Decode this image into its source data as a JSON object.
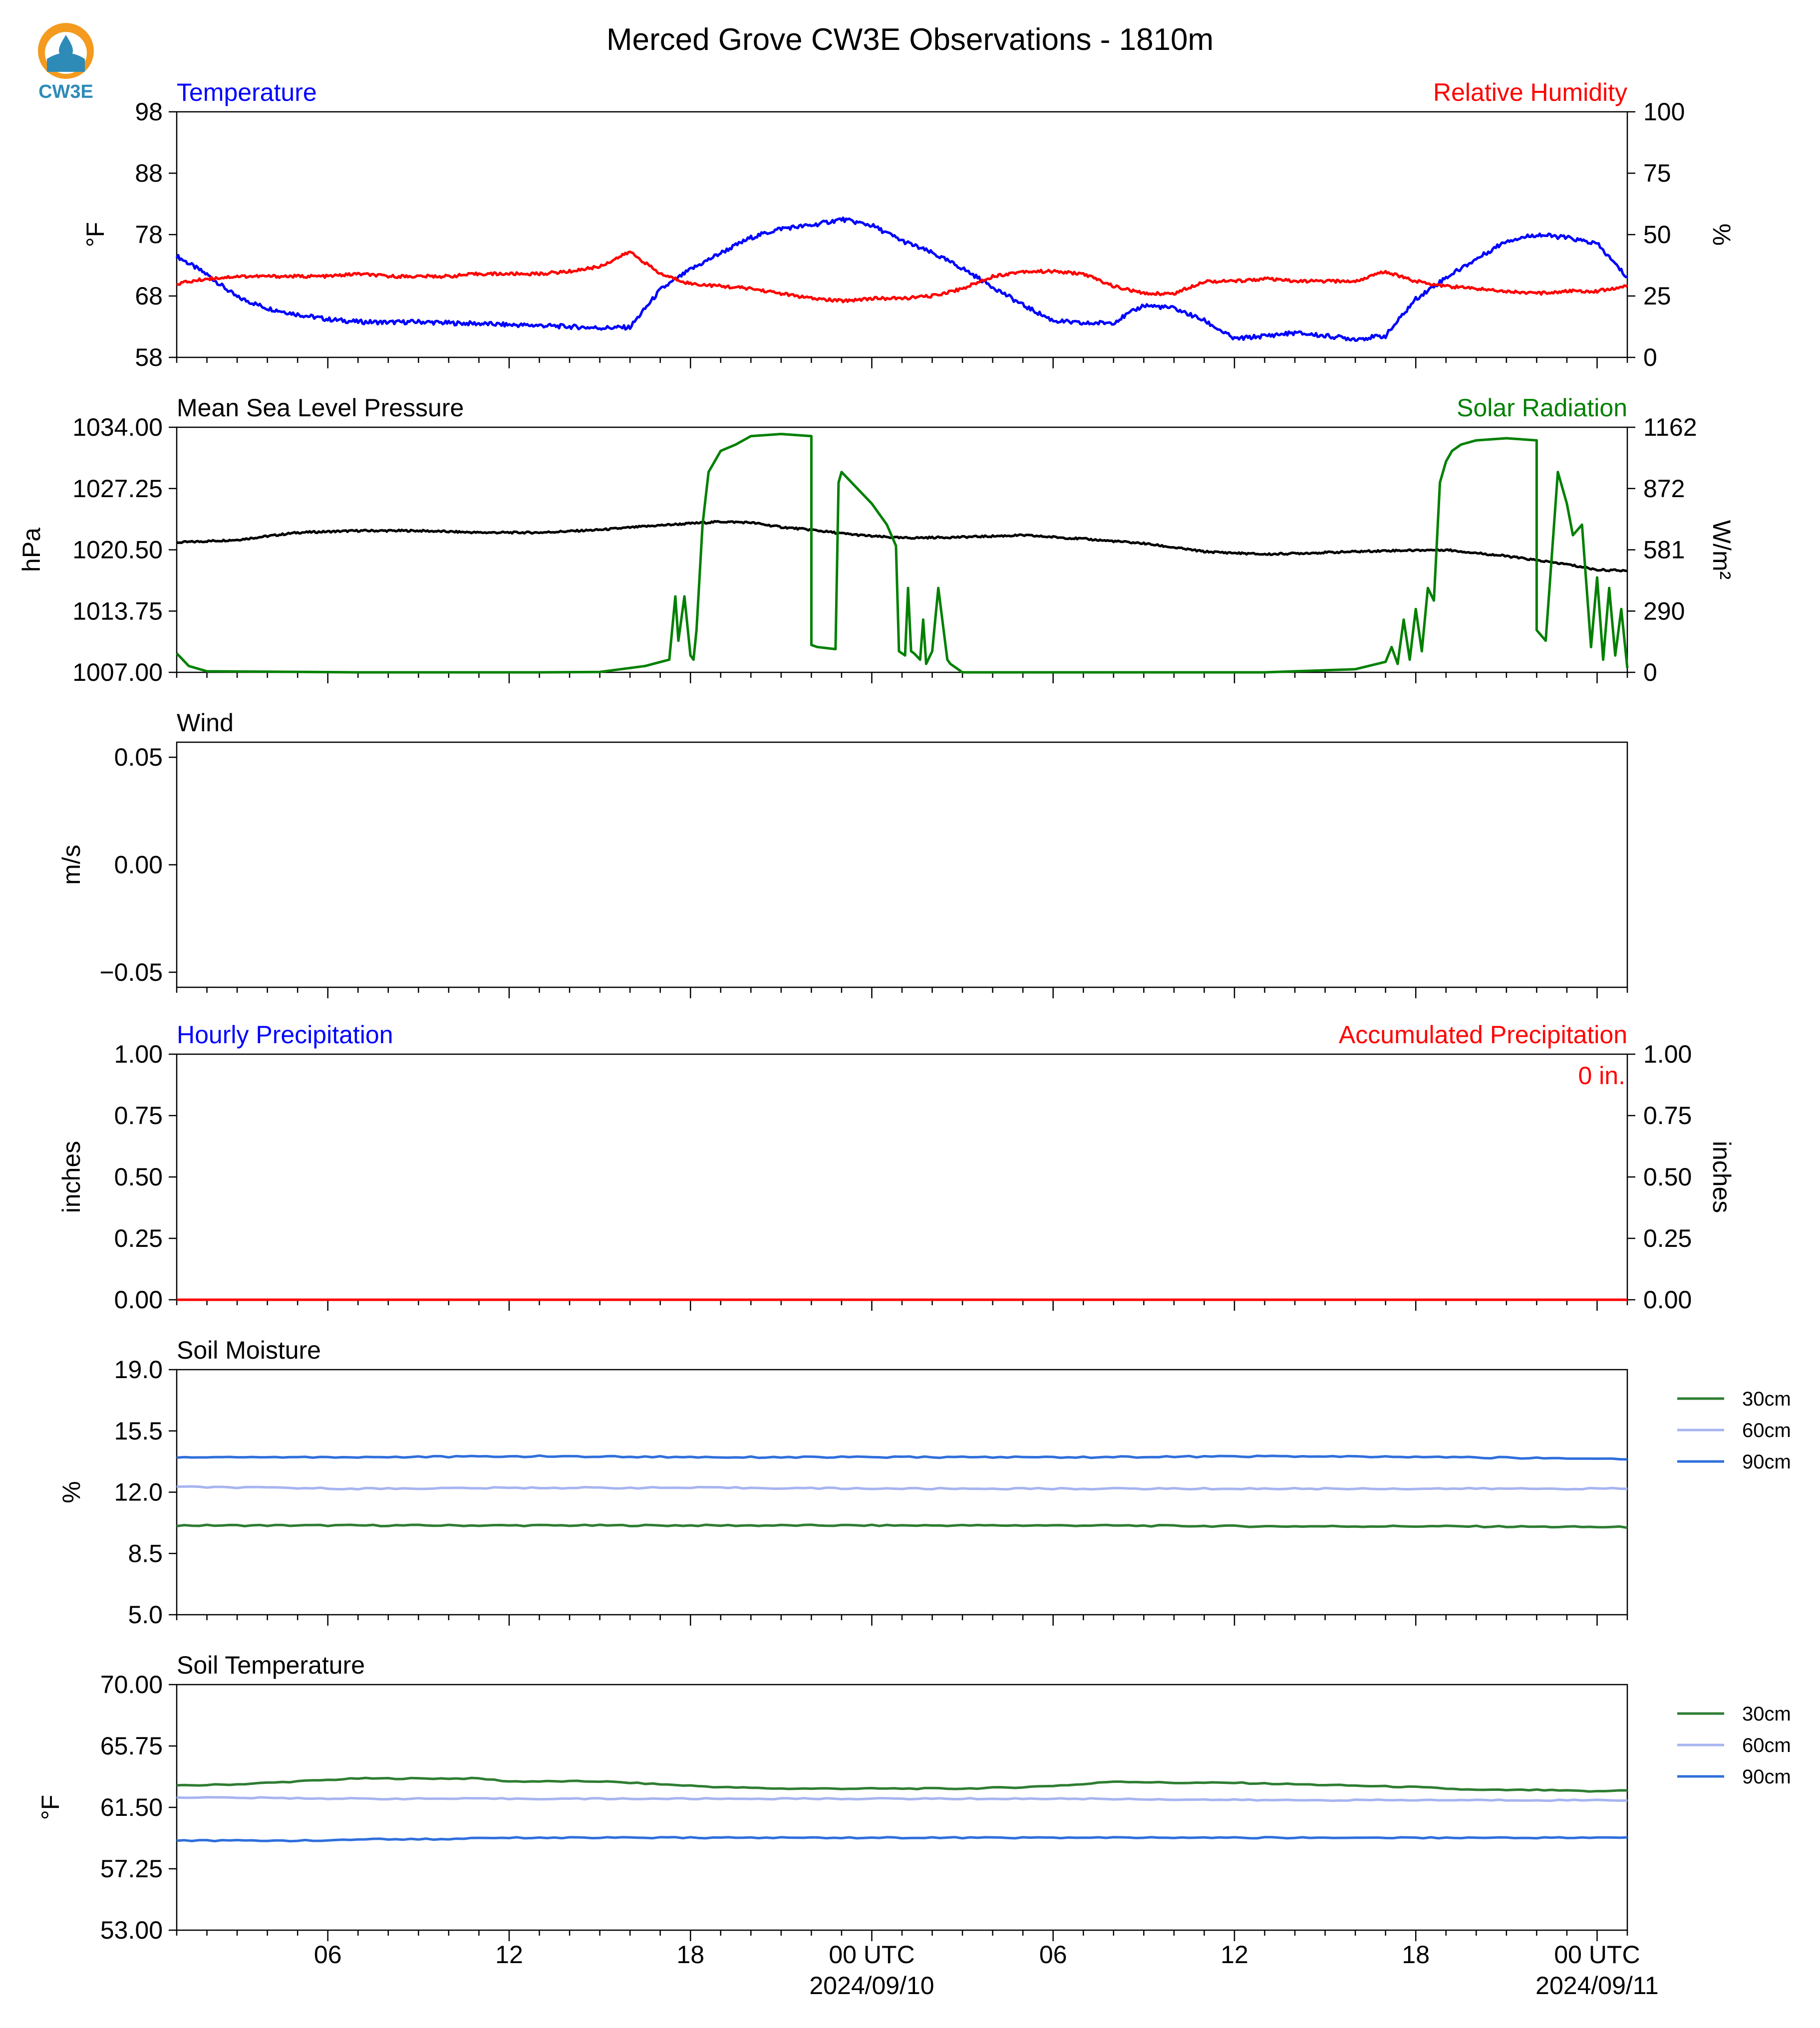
{
  "logo": {
    "text": "CW3E",
    "color": "#2e8bb8",
    "accent": "#f39a1f"
  },
  "colors": {
    "temperature": "#0000ff",
    "humidity": "#ff0000",
    "pressure": "#000000",
    "solar": "#008000",
    "soil_30": "#2e7d32",
    "soil_60": "#a7b4f0",
    "soil_90": "#2f6fdc"
  },
  "chart_data": [
    {
      "panel": "temperature-humidity",
      "type": "line",
      "title": "Merced Grove CW3E Observations - 1810m",
      "left_label": "Temperature",
      "right_label": "Relative Humidity",
      "ylabel": "°F",
      "ylabel_right": "%",
      "ylim": [
        58,
        98
      ],
      "ylim_right": [
        0,
        100
      ],
      "yticks": [
        "98",
        "88",
        "78",
        "68",
        "58"
      ],
      "yticks_right": [
        "100",
        "75",
        "50",
        "25",
        "0"
      ],
      "x_hours": [
        0,
        1,
        2,
        3,
        4,
        5,
        6,
        7,
        8,
        9,
        10,
        11,
        12,
        13,
        14,
        15,
        16,
        17,
        18,
        19,
        20,
        21,
        22,
        23,
        24,
        25,
        26,
        27,
        28,
        29,
        30,
        31,
        32,
        33,
        34,
        35,
        36,
        37,
        38,
        39,
        40,
        41,
        42,
        43,
        44,
        45,
        46,
        47,
        48
      ],
      "series": [
        {
          "name": "Temperature",
          "axis": "left",
          "values": [
            74.5,
            71.5,
            67.8,
            66.0,
            65.0,
            64.2,
            63.8,
            63.7,
            63.8,
            63.6,
            63.5,
            63.3,
            63.2,
            63.0,
            62.8,
            62.9,
            69.0,
            72.3,
            75.0,
            77.5,
            79.0,
            79.5,
            80.5,
            79.5,
            77.0,
            75.0,
            72.5,
            69.5,
            66.5,
            64.0,
            63.5,
            63.7,
            66.5,
            66.0,
            64.0,
            61.0,
            61.5,
            62.0,
            61.5,
            61.0,
            61.5,
            67.5,
            71.0,
            74.0,
            77.0,
            78.0,
            77.5,
            76.5,
            71.0
          ]
        },
        {
          "name": "Relative Humidity",
          "axis": "right",
          "values": [
            30,
            32,
            33,
            33,
            33,
            33,
            34,
            33,
            33,
            33,
            34,
            34,
            34,
            35,
            37,
            43,
            34,
            30,
            29,
            28,
            26,
            24,
            23,
            24,
            24,
            25,
            28,
            33,
            35,
            35,
            34,
            29,
            26,
            26,
            31,
            31,
            32,
            31,
            31,
            31,
            35,
            31,
            29,
            28,
            27,
            26,
            27,
            27,
            29
          ]
        }
      ]
    },
    {
      "panel": "pressure-solar",
      "type": "line",
      "left_label": "Mean Sea Level Pressure",
      "right_label": "Solar Radiation",
      "ylabel": "hPa",
      "ylabel_right": "W/m²",
      "ylim": [
        1007.0,
        1034.0
      ],
      "ylim_right": [
        0,
        1162
      ],
      "yticks": [
        "1034.00",
        "1027.25",
        "1020.50",
        "1013.75",
        "1007.00"
      ],
      "yticks_right": [
        "1162",
        "872",
        "581",
        "290",
        "0"
      ],
      "series": [
        {
          "name": "Mean Sea Level Pressure",
          "axis": "left",
          "x_hours": [
            0,
            2,
            4,
            6,
            8,
            10,
            12,
            14,
            16,
            17,
            18,
            19,
            20,
            21,
            22,
            23,
            24,
            26,
            28,
            30,
            32,
            34,
            36,
            38,
            40,
            42,
            44,
            46,
            47,
            48
          ],
          "values": [
            1021.3,
            1021.6,
            1022.4,
            1022.6,
            1022.6,
            1022.4,
            1022.4,
            1022.7,
            1023.2,
            1023.4,
            1023.6,
            1023.5,
            1023.0,
            1022.7,
            1022.3,
            1022.0,
            1021.8,
            1021.9,
            1022.1,
            1021.7,
            1021.2,
            1020.3,
            1020.0,
            1020.2,
            1020.4,
            1020.5,
            1019.8,
            1018.9,
            1018.3,
            1018.2
          ]
        },
        {
          "name": "Solar Radiation",
          "axis": "right",
          "x_hours": [
            0,
            0.2,
            0.4,
            1,
            6,
            12,
            14,
            15.5,
            16.3,
            16.5,
            16.6,
            16.8,
            17.0,
            17.1,
            17.2,
            17.4,
            17.6,
            17.8,
            18.0,
            18.5,
            19.0,
            20.0,
            21.0,
            21.0,
            21.2,
            21.8,
            21.9,
            22.0,
            23.0,
            23.5,
            23.8,
            23.9,
            24.1,
            24.2,
            24.3,
            24.4,
            24.6,
            24.7,
            24.8,
            25.0,
            25.2,
            25.5,
            25.6,
            26.0,
            27.0,
            30,
            36,
            39,
            40.0,
            40.2,
            40.4,
            40.6,
            40.8,
            41.0,
            41.2,
            41.4,
            41.6,
            41.8,
            42.0,
            42.2,
            42.5,
            43.0,
            44.0,
            45.0,
            45.0,
            45.3,
            45.7,
            46.0,
            46.2,
            46.5,
            46.8,
            47.0,
            47.2,
            47.4,
            47.6,
            47.8,
            48.0
          ],
          "values": [
            90,
            60,
            30,
            5,
            0,
            0,
            2,
            30,
            60,
            360,
            150,
            360,
            80,
            60,
            200,
            700,
            950,
            1000,
            1050,
            1080,
            1120,
            1130,
            1120,
            130,
            120,
            110,
            900,
            950,
            800,
            700,
            600,
            100,
            80,
            400,
            100,
            90,
            60,
            250,
            40,
            100,
            400,
            60,
            40,
            0,
            0,
            0,
            0,
            15,
            50,
            120,
            40,
            250,
            60,
            300,
            100,
            400,
            340,
            900,
            1000,
            1050,
            1080,
            1100,
            1110,
            1100,
            200,
            150,
            950,
            800,
            650,
            700,
            120,
            450,
            60,
            400,
            80,
            300,
            20
          ]
        }
      ]
    },
    {
      "panel": "wind",
      "type": "line",
      "left_label": "Wind",
      "ylabel": "m/s",
      "ylim": [
        -0.057,
        0.057
      ],
      "yticks": [
        "0.05",
        "0.00",
        "−0.05"
      ],
      "series": []
    },
    {
      "panel": "precipitation",
      "type": "line",
      "left_label": "Hourly Precipitation",
      "right_label": "Accumulated Precipitation",
      "annotation": "0 in.",
      "ylabel": "inches",
      "ylabel_right": "inches",
      "ylim": [
        0,
        1
      ],
      "yticks": [
        "1.00",
        "0.75",
        "0.50",
        "0.25",
        "0.00"
      ],
      "yticks_right": [
        "1.00",
        "0.75",
        "0.50",
        "0.25",
        "0.00"
      ],
      "series": [
        {
          "name": "Hourly Precipitation",
          "axis": "left",
          "x_hours": [
            0,
            48
          ],
          "values": [
            0,
            0
          ]
        },
        {
          "name": "Accumulated Precipitation",
          "axis": "right",
          "x_hours": [
            0,
            48
          ],
          "values": [
            0,
            0
          ]
        }
      ]
    },
    {
      "panel": "soil-moisture",
      "type": "line",
      "left_label": "Soil Moisture",
      "ylabel": "%",
      "ylim": [
        5,
        19
      ],
      "yticks": [
        "19.0",
        "15.5",
        "12.0",
        "8.5",
        "5.0"
      ],
      "legend": [
        "30cm",
        "60cm",
        "90cm"
      ],
      "series": [
        {
          "name": "30cm",
          "x_hours": [
            0,
            6,
            12,
            18,
            24,
            30,
            36,
            42,
            48
          ],
          "values": [
            10.1,
            10.1,
            10.1,
            10.1,
            10.1,
            10.1,
            10.05,
            10.05,
            10.0
          ]
        },
        {
          "name": "60cm",
          "x_hours": [
            0,
            6,
            12,
            18,
            24,
            30,
            36,
            42,
            48
          ],
          "values": [
            12.3,
            12.2,
            12.25,
            12.25,
            12.2,
            12.2,
            12.2,
            12.2,
            12.2
          ]
        },
        {
          "name": "90cm",
          "x_hours": [
            0,
            6,
            12,
            18,
            24,
            30,
            36,
            42,
            48
          ],
          "values": [
            14.0,
            14.0,
            14.05,
            14.0,
            14.0,
            14.0,
            14.05,
            14.0,
            13.9
          ]
        }
      ]
    },
    {
      "panel": "soil-temperature",
      "type": "line",
      "left_label": "Soil Temperature",
      "ylabel": "°F",
      "ylim": [
        53,
        70
      ],
      "yticks": [
        "70.00",
        "65.75",
        "61.50",
        "57.25",
        "53.00"
      ],
      "legend": [
        "30cm",
        "60cm",
        "90cm"
      ],
      "series": [
        {
          "name": "30cm",
          "x_hours": [
            0,
            2,
            4,
            6,
            8,
            10,
            11,
            14,
            16,
            18,
            20,
            22,
            24,
            26,
            28,
            30,
            31,
            33,
            35,
            37,
            39,
            41,
            43,
            45,
            47,
            48
          ],
          "values": [
            63.0,
            63.1,
            63.3,
            63.5,
            63.5,
            63.5,
            63.3,
            63.3,
            63.1,
            62.9,
            62.8,
            62.8,
            62.8,
            62.8,
            62.9,
            63.1,
            63.3,
            63.2,
            63.2,
            63.1,
            63.0,
            62.9,
            62.7,
            62.7,
            62.6,
            62.7
          ]
        },
        {
          "name": "60cm",
          "x_hours": [
            0,
            6,
            12,
            18,
            24,
            30,
            36,
            42,
            48
          ],
          "values": [
            62.2,
            62.1,
            62.1,
            62.1,
            62.1,
            62.1,
            62.0,
            62.0,
            62.0
          ]
        },
        {
          "name": "90cm",
          "x_hours": [
            0,
            5,
            6,
            9,
            10,
            18,
            24,
            30,
            36,
            42,
            48
          ],
          "values": [
            59.2,
            59.2,
            59.3,
            59.3,
            59.4,
            59.4,
            59.4,
            59.4,
            59.4,
            59.4,
            59.4
          ]
        }
      ]
    }
  ],
  "x_axis": {
    "range_hours": [
      0,
      48
    ],
    "ticks": [
      {
        "hour": 5,
        "label": "06"
      },
      {
        "hour": 11,
        "label": "12"
      },
      {
        "hour": 17,
        "label": "18"
      },
      {
        "hour": 23,
        "label": "00 UTC",
        "date": "2024/09/10"
      },
      {
        "hour": 29,
        "label": "06"
      },
      {
        "hour": 35,
        "label": "12"
      },
      {
        "hour": 41,
        "label": "18"
      },
      {
        "hour": 47,
        "label": "00 UTC",
        "date": "2024/09/11"
      }
    ]
  }
}
